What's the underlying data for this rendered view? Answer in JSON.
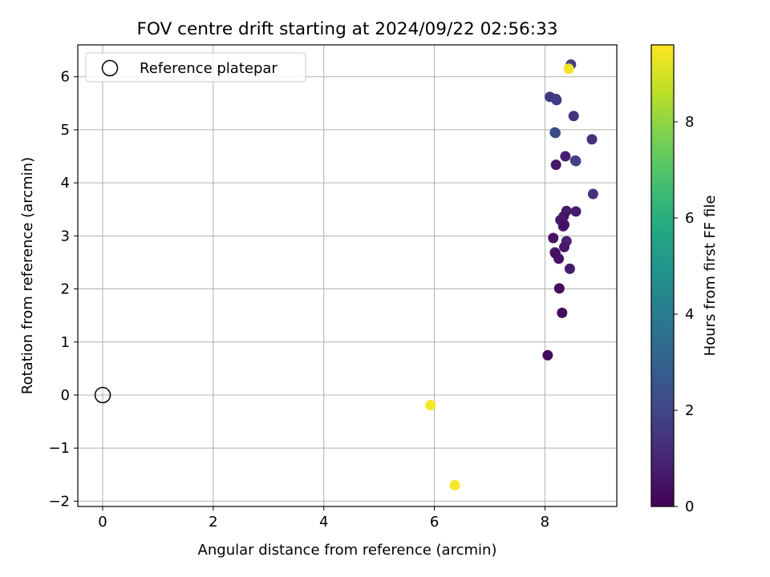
{
  "chart_data": {
    "type": "scatter",
    "title": "FOV centre drift starting at 2024/09/22 02:56:33",
    "xlabel": "Angular distance from reference (arcmin)",
    "ylabel": "Rotation from reference (arcmin)",
    "xlim": [
      -0.45,
      9.3
    ],
    "ylim": [
      -2.1,
      6.6
    ],
    "xticks": [
      0,
      2,
      4,
      6,
      8
    ],
    "xtick_labels": [
      "0",
      "2",
      "4",
      "6",
      "8"
    ],
    "yticks": [
      -2,
      -1,
      0,
      1,
      2,
      3,
      4,
      5,
      6
    ],
    "ytick_labels": [
      "−2",
      "−1",
      "0",
      "1",
      "2",
      "3",
      "4",
      "5",
      "6"
    ],
    "grid": true,
    "legend": {
      "placement": "upper-left",
      "entries": [
        {
          "label": "Reference platepar",
          "marker": "open-circle",
          "x": 0,
          "y": 0
        }
      ]
    },
    "colorbar": {
      "label": "Hours from first FF file",
      "range": [
        0,
        9.6
      ],
      "ticks": [
        0,
        2,
        4,
        6,
        8
      ],
      "tick_labels": [
        "0",
        "2",
        "4",
        "6",
        "8"
      ],
      "colormap": "viridis"
    },
    "points": [
      {
        "x": 8.47,
        "y": 6.23,
        "hours": 1.8
      },
      {
        "x": 8.43,
        "y": 6.15,
        "hours": 9.4
      },
      {
        "x": 8.09,
        "y": 5.62,
        "hours": 1.6
      },
      {
        "x": 8.2,
        "y": 5.58,
        "hours": 1.6
      },
      {
        "x": 8.21,
        "y": 5.56,
        "hours": 1.7
      },
      {
        "x": 8.52,
        "y": 5.26,
        "hours": 1.4
      },
      {
        "x": 8.18,
        "y": 4.95,
        "hours": 2.0
      },
      {
        "x": 8.19,
        "y": 4.94,
        "hours": 2.2
      },
      {
        "x": 8.85,
        "y": 4.82,
        "hours": 1.3
      },
      {
        "x": 8.37,
        "y": 4.5,
        "hours": 0.8
      },
      {
        "x": 8.55,
        "y": 4.42,
        "hours": 1.4
      },
      {
        "x": 8.56,
        "y": 4.41,
        "hours": 1.9
      },
      {
        "x": 8.2,
        "y": 4.34,
        "hours": 0.6
      },
      {
        "x": 8.87,
        "y": 3.79,
        "hours": 1.3
      },
      {
        "x": 8.39,
        "y": 3.47,
        "hours": 0.7
      },
      {
        "x": 8.56,
        "y": 3.46,
        "hours": 0.8
      },
      {
        "x": 8.34,
        "y": 3.37,
        "hours": 0.5
      },
      {
        "x": 8.28,
        "y": 3.3,
        "hours": 0.7
      },
      {
        "x": 8.33,
        "y": 3.18,
        "hours": 0.9
      },
      {
        "x": 8.35,
        "y": 3.21,
        "hours": 0.4
      },
      {
        "x": 8.15,
        "y": 2.96,
        "hours": 0.5
      },
      {
        "x": 8.39,
        "y": 2.9,
        "hours": 0.9
      },
      {
        "x": 8.35,
        "y": 2.79,
        "hours": 0.6
      },
      {
        "x": 8.18,
        "y": 2.69,
        "hours": 1.6
      },
      {
        "x": 8.19,
        "y": 2.67,
        "hours": 0.4
      },
      {
        "x": 8.25,
        "y": 2.57,
        "hours": 0.5
      },
      {
        "x": 8.45,
        "y": 2.38,
        "hours": 0.7
      },
      {
        "x": 8.26,
        "y": 2.01,
        "hours": 0.3
      },
      {
        "x": 8.31,
        "y": 1.55,
        "hours": 0.3
      },
      {
        "x": 8.05,
        "y": 0.75,
        "hours": 0.2
      },
      {
        "x": 5.93,
        "y": -0.19,
        "hours": 9.5
      },
      {
        "x": 6.37,
        "y": -1.7,
        "hours": 9.5
      }
    ]
  }
}
